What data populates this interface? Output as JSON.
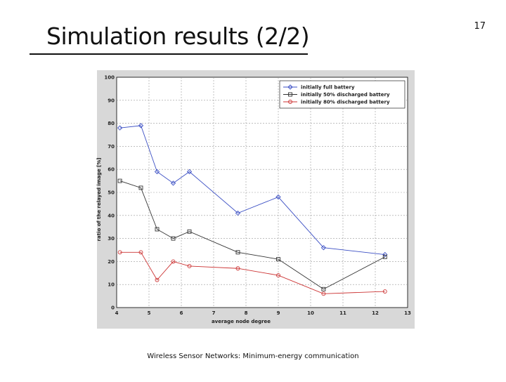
{
  "slide": {
    "title": "Simulation results (2/2)",
    "page_number": "17",
    "footer": "Wireless Sensor Networks: Minimum-energy communication"
  },
  "chart_data": {
    "type": "line",
    "xlabel": "average node degree",
    "ylabel": "ratio of the relayed image [%]",
    "xlim": [
      4,
      13
    ],
    "ylim": [
      0,
      100
    ],
    "xticks": [
      4,
      5,
      6,
      7,
      8,
      9,
      10,
      11,
      12,
      13
    ],
    "yticks": [
      0,
      10,
      20,
      30,
      40,
      50,
      60,
      70,
      80,
      90,
      100
    ],
    "grid": true,
    "legend_position": "top-right",
    "series": [
      {
        "name": "initially full battery",
        "color": "#3b4fc4",
        "marker": "diamond",
        "x": [
          4.1,
          4.75,
          5.25,
          5.75,
          6.25,
          7.75,
          9.0,
          10.4,
          12.3
        ],
        "y": [
          78,
          79,
          59,
          54,
          59,
          41,
          48,
          26,
          23
        ]
      },
      {
        "name": "initially 50% discharged battery",
        "color": "#333333",
        "marker": "square",
        "x": [
          4.1,
          4.75,
          5.25,
          5.75,
          6.25,
          7.75,
          9.0,
          10.4,
          12.3
        ],
        "y": [
          55,
          52,
          34,
          30,
          33,
          24,
          21,
          8,
          22
        ]
      },
      {
        "name": "initially 80% discharged battery",
        "color": "#cc3333",
        "marker": "circle",
        "x": [
          4.1,
          4.75,
          5.25,
          5.75,
          6.25,
          7.75,
          9.0,
          10.4,
          12.3
        ],
        "y": [
          24,
          24,
          12,
          20,
          18,
          17,
          14,
          6,
          7
        ]
      }
    ]
  }
}
